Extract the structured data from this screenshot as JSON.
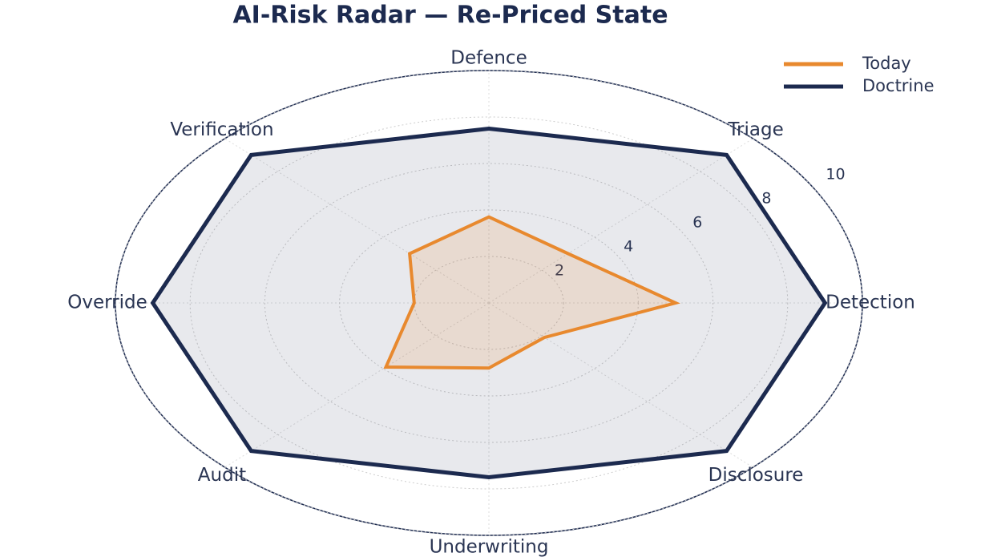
{
  "chart_data": {
    "type": "radar",
    "title": "AI-Risk Radar — Re-Priced State",
    "categories": [
      "Defence",
      "Triage",
      "Detection",
      "Disclosure",
      "Underwriting",
      "Audit",
      "Override",
      "Verification"
    ],
    "series": [
      {
        "name": "Today",
        "color": "#e8892e",
        "values": [
          3.7,
          3,
          5,
          2.1,
          2.8,
          3.9,
          2,
          3
        ]
      },
      {
        "name": "Doctrine",
        "color": "#1c2a4f",
        "values": [
          7.5,
          9,
          9,
          9,
          7.5,
          9,
          9,
          9
        ]
      }
    ],
    "rlim": [
      0,
      10
    ],
    "rticks": [
      2,
      4,
      6,
      8,
      10
    ],
    "grid": true,
    "legend": "top-right"
  }
}
